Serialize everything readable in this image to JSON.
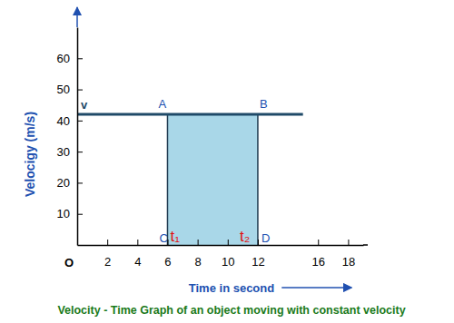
{
  "chart_data": {
    "type": "line",
    "title": "Velocity - Time Graph of an object moving with constant velocity",
    "x_label": "Time in second",
    "y_label": "Velocigy (m/s)",
    "x": [
      0,
      15
    ],
    "values": [
      42,
      42
    ],
    "color": "#1f4a68",
    "shaded_interval": [
      6,
      12
    ],
    "xlim": [
      0,
      19
    ],
    "ylim": [
      0,
      70
    ],
    "xticks": [
      2,
      4,
      6,
      8,
      10,
      12,
      16,
      18
    ],
    "yticks": [
      10,
      20,
      30,
      40,
      50,
      60
    ],
    "grid": false,
    "annotations": [
      {
        "text": "O",
        "x": 0,
        "y": 0,
        "color": "#000000"
      },
      {
        "text": "v",
        "x": 0,
        "y": 42,
        "color": "#1f4a68"
      },
      {
        "text": "A",
        "x": 6,
        "y": 42,
        "color": "#2050b0"
      },
      {
        "text": "B",
        "x": 12,
        "y": 42,
        "color": "#2050b0"
      },
      {
        "text": "C",
        "x": 6,
        "y": 0,
        "color": "#2050b0"
      },
      {
        "text": "D",
        "x": 12,
        "y": 0,
        "color": "#2050b0"
      },
      {
        "text": "t₁",
        "x": 6,
        "y": 0,
        "color": "#e01010"
      },
      {
        "text": "t₂",
        "x": 12,
        "y": 0,
        "color": "#e01010"
      }
    ]
  }
}
